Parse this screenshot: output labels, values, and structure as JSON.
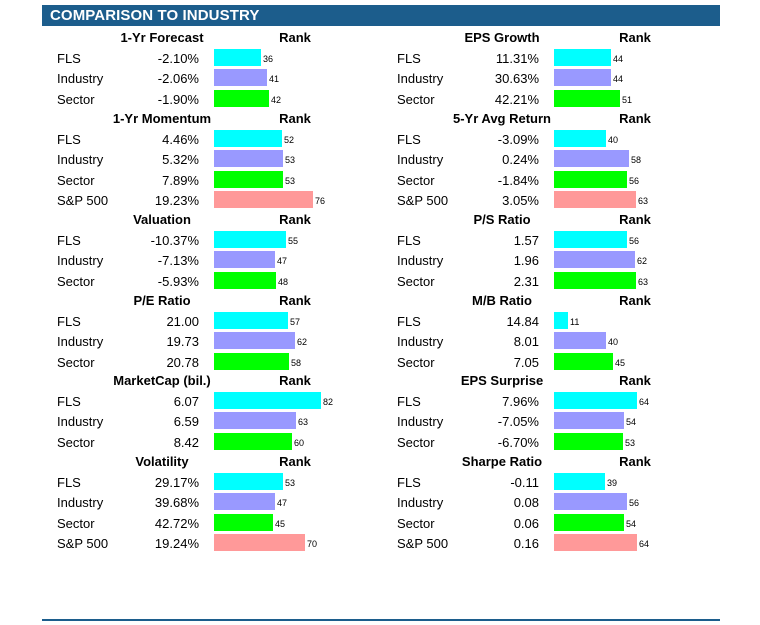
{
  "header": {
    "title": "COMPARISON TO INDUSTRY"
  },
  "rank_label": "Rank",
  "colors": {
    "FLS": "#00ffff",
    "Industry": "#9999ff",
    "Sector": "#00ff00",
    "S&P 500": "#ff9999"
  },
  "panels": [
    {
      "title": "1-Yr Forecast",
      "rows": [
        {
          "label": "FLS",
          "value": "-2.10%",
          "rank": 36
        },
        {
          "label": "Industry",
          "value": "-2.06%",
          "rank": 41
        },
        {
          "label": "Sector",
          "value": "-1.90%",
          "rank": 42
        }
      ]
    },
    {
      "title": "EPS Growth",
      "rows": [
        {
          "label": "FLS",
          "value": "11.31%",
          "rank": 44
        },
        {
          "label": "Industry",
          "value": "30.63%",
          "rank": 44
        },
        {
          "label": "Sector",
          "value": "42.21%",
          "rank": 51
        }
      ]
    },
    {
      "title": "1-Yr Momentum",
      "rows": [
        {
          "label": "FLS",
          "value": "4.46%",
          "rank": 52
        },
        {
          "label": "Industry",
          "value": "5.32%",
          "rank": 53
        },
        {
          "label": "Sector",
          "value": "7.89%",
          "rank": 53
        },
        {
          "label": "S&P 500",
          "value": "19.23%",
          "rank": 76
        }
      ]
    },
    {
      "title": "5-Yr Avg Return",
      "rows": [
        {
          "label": "FLS",
          "value": "-3.09%",
          "rank": 40
        },
        {
          "label": "Industry",
          "value": "0.24%",
          "rank": 58
        },
        {
          "label": "Sector",
          "value": "-1.84%",
          "rank": 56
        },
        {
          "label": "S&P 500",
          "value": "3.05%",
          "rank": 63
        }
      ]
    },
    {
      "title": "Valuation",
      "rows": [
        {
          "label": "FLS",
          "value": "-10.37%",
          "rank": 55
        },
        {
          "label": "Industry",
          "value": "-7.13%",
          "rank": 47
        },
        {
          "label": "Sector",
          "value": "-5.93%",
          "rank": 48
        }
      ]
    },
    {
      "title": "P/S Ratio",
      "rows": [
        {
          "label": "FLS",
          "value": "1.57",
          "rank": 56
        },
        {
          "label": "Industry",
          "value": "1.96",
          "rank": 62
        },
        {
          "label": "Sector",
          "value": "2.31",
          "rank": 63
        }
      ]
    },
    {
      "title": "P/E Ratio",
      "rows": [
        {
          "label": "FLS",
          "value": "21.00",
          "rank": 57
        },
        {
          "label": "Industry",
          "value": "19.73",
          "rank": 62
        },
        {
          "label": "Sector",
          "value": "20.78",
          "rank": 58
        }
      ]
    },
    {
      "title": "M/B Ratio",
      "rows": [
        {
          "label": "FLS",
          "value": "14.84",
          "rank": 11
        },
        {
          "label": "Industry",
          "value": "8.01",
          "rank": 40
        },
        {
          "label": "Sector",
          "value": "7.05",
          "rank": 45
        }
      ]
    },
    {
      "title": "MarketCap (bil.)",
      "rows": [
        {
          "label": "FLS",
          "value": "6.07",
          "rank": 82
        },
        {
          "label": "Industry",
          "value": "6.59",
          "rank": 63
        },
        {
          "label": "Sector",
          "value": "8.42",
          "rank": 60
        }
      ]
    },
    {
      "title": "EPS Surprise",
      "rows": [
        {
          "label": "FLS",
          "value": "7.96%",
          "rank": 64
        },
        {
          "label": "Industry",
          "value": "-7.05%",
          "rank": 54
        },
        {
          "label": "Sector",
          "value": "-6.70%",
          "rank": 53
        }
      ]
    },
    {
      "title": "Volatility",
      "rows": [
        {
          "label": "FLS",
          "value": "29.17%",
          "rank": 53
        },
        {
          "label": "Industry",
          "value": "39.68%",
          "rank": 47
        },
        {
          "label": "Sector",
          "value": "42.72%",
          "rank": 45
        },
        {
          "label": "S&P 500",
          "value": "19.24%",
          "rank": 70
        }
      ]
    },
    {
      "title": "Sharpe Ratio",
      "rows": [
        {
          "label": "FLS",
          "value": "-0.11",
          "rank": 39
        },
        {
          "label": "Industry",
          "value": "0.08",
          "rank": 56
        },
        {
          "label": "Sector",
          "value": "0.06",
          "rank": 54
        },
        {
          "label": "S&P 500",
          "value": "0.16",
          "rank": 64
        }
      ]
    }
  ]
}
